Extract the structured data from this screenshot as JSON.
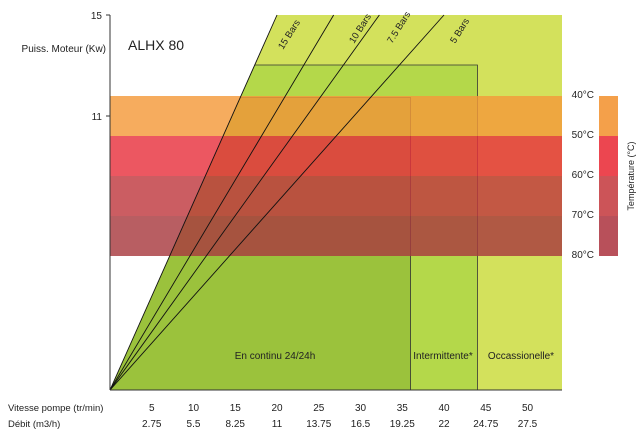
{
  "chart_data": {
    "type": "area",
    "title": "ALHX 80",
    "ylabel": "Puiss. Moteur (Kw)",
    "y_ticks": [
      "15",
      "11"
    ],
    "ylim": [
      0,
      15
    ],
    "x_axis_speed": {
      "label": "Vitesse pompe (tr/min)",
      "ticks": [
        "5",
        "10",
        "15",
        "20",
        "25",
        "30",
        "35",
        "40",
        "45",
        "50"
      ],
      "range": [
        0,
        55
      ]
    },
    "x_axis_flow": {
      "label": "Débit (m3/h)",
      "ticks": [
        "2.75",
        "5.5",
        "8.25",
        "11",
        "13.75",
        "16.5",
        "19.25",
        "22",
        "24.75",
        "27.5"
      ]
    },
    "pressure_lines": [
      {
        "name": "15 Bars",
        "kw_at_20": 15
      },
      {
        "name": "10 Bars",
        "kw_at_20": 11.2
      },
      {
        "name": "7.5 Bars",
        "kw_at_20": 9.3
      },
      {
        "name": "5 Bars",
        "kw_at_20": 7.5
      }
    ],
    "operating_zones": [
      {
        "label": "En continu 24/24h",
        "from_speed": 0,
        "to_speed": 36,
        "max_kw": 11.7,
        "color": "#9bc23c"
      },
      {
        "label": "Intermittente*",
        "from_speed": 36,
        "to_speed": 44,
        "max_kw": 13,
        "color": "#b4d84a"
      },
      {
        "label": "Occassionelle*",
        "from_speed": 44,
        "to_speed": 55,
        "max_kw": 15,
        "color": "#d3e15c"
      }
    ],
    "temperature_bands": {
      "axis_label": "Température (°C)",
      "bands": [
        {
          "label": "40°C",
          "color": "#f0a040"
        },
        {
          "label": "50°C",
          "color": "#e84048"
        },
        {
          "label": "60°C",
          "color": "#c85050"
        },
        {
          "label": "70°C",
          "color": "#b04450"
        },
        {
          "label": "80°C",
          "color": ""
        }
      ]
    }
  }
}
